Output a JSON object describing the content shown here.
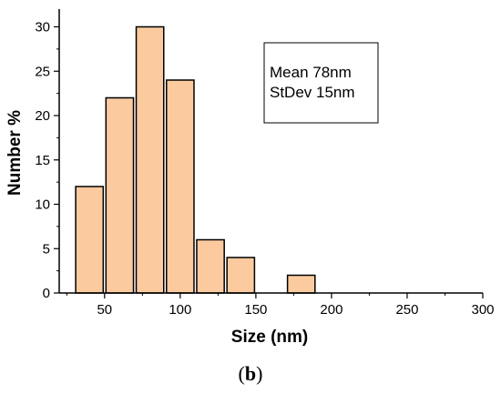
{
  "chart_data": {
    "type": "bar",
    "bins": [
      {
        "x0": 30,
        "x1": 50,
        "value": 12
      },
      {
        "x0": 50,
        "x1": 70,
        "value": 22
      },
      {
        "x0": 70,
        "x1": 90,
        "value": 30
      },
      {
        "x0": 90,
        "x1": 110,
        "value": 24
      },
      {
        "x0": 110,
        "x1": 130,
        "value": 6
      },
      {
        "x0": 130,
        "x1": 150,
        "value": 4
      },
      {
        "x0": 170,
        "x1": 190,
        "value": 2
      }
    ],
    "xlabel": "Size (nm)",
    "ylabel": "Number %",
    "xlim": [
      20,
      300
    ],
    "ylim": [
      0,
      32
    ],
    "x_ticks": [
      50,
      100,
      150,
      200,
      250,
      300
    ],
    "y_ticks": [
      0,
      5,
      10,
      15,
      20,
      25,
      30
    ],
    "bar_color": "#fbcb9f",
    "bar_edge_color": "#000000",
    "grid": false,
    "annotations": [
      "Mean 78nm",
      "StDev 15nm"
    ],
    "panel_label": {
      "open": "(",
      "letter": "b",
      "close": ")"
    }
  }
}
